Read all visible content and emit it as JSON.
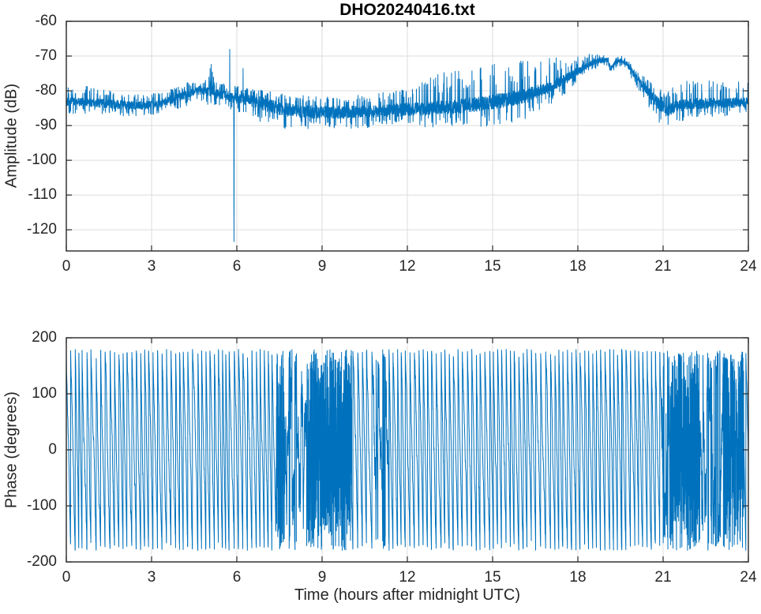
{
  "figure_title": "DHO20240416.txt",
  "line_color": "#0072BD",
  "grid_color": "#dcdcdc",
  "axis_color": "#262626",
  "background_color": "#ffffff",
  "chart_data": [
    {
      "type": "line",
      "title": "DHO20240416.txt",
      "ylabel": "Amplitude (dB)",
      "xlabel": "",
      "x_range": [
        0,
        24
      ],
      "ylim": [
        -126.1,
        -60
      ],
      "xticks": [
        0,
        3,
        6,
        9,
        12,
        15,
        18,
        21,
        24
      ],
      "xtick_labels": [
        "0",
        "3",
        "6",
        "9",
        "12",
        "15",
        "18",
        "21",
        "24"
      ],
      "yticks": [
        -60,
        -70,
        -80,
        -90,
        -100,
        -110,
        -120
      ],
      "ytick_labels": [
        "-60",
        "-70",
        "-80",
        "-90",
        "-100",
        "-110",
        "-120"
      ],
      "grid": true,
      "legend": "none",
      "line_color": "#0072BD",
      "description": "VLF amplitude of DHO transmitter vs time; noisy band near -84 dB, daytime bump near 04:48, large dropout spike to about -123.5 dB at 05:54, broad evening maximum near -71 dB at 18:30-19:30, sharp drop to about -86 dB by 21:00, recovery to -83.5 dB",
      "sample_step_hours": 0.005,
      "seed": 7,
      "trend_keypoints": [
        [
          0,
          -83.3
        ],
        [
          0.7,
          -83.2
        ],
        [
          1.5,
          -83.8
        ],
        [
          2.5,
          -84.3
        ],
        [
          3.2,
          -83.8
        ],
        [
          3.8,
          -82.3
        ],
        [
          4.3,
          -80.8
        ],
        [
          4.7,
          -79.8
        ],
        [
          5.0,
          -80.3
        ],
        [
          5.3,
          -80.8
        ],
        [
          5.6,
          -81.3
        ],
        [
          5.9,
          -82.0
        ],
        [
          6.3,
          -82.5
        ],
        [
          6.7,
          -83.2
        ],
        [
          7.2,
          -84.5
        ],
        [
          7.8,
          -85.5
        ],
        [
          8.5,
          -86.0
        ],
        [
          9.5,
          -86.2
        ],
        [
          10.5,
          -86.0
        ],
        [
          11.5,
          -85.6
        ],
        [
          12.5,
          -85.2
        ],
        [
          13.5,
          -84.6
        ],
        [
          14.5,
          -83.8
        ],
        [
          15.5,
          -82.6
        ],
        [
          16.2,
          -81.4
        ],
        [
          17.0,
          -79.0
        ],
        [
          17.6,
          -76.5
        ],
        [
          18.1,
          -73.8
        ],
        [
          18.5,
          -72.0
        ],
        [
          18.8,
          -71.2
        ],
        [
          19.05,
          -71.0
        ],
        [
          19.15,
          -74.0
        ],
        [
          19.3,
          -72.0
        ],
        [
          19.5,
          -71.2
        ],
        [
          19.7,
          -72.0
        ],
        [
          20.0,
          -75.5
        ],
        [
          20.4,
          -79.5
        ],
        [
          20.8,
          -83.5
        ],
        [
          21.1,
          -85.8
        ],
        [
          21.4,
          -84.8
        ],
        [
          21.8,
          -83.8
        ],
        [
          22.5,
          -83.6
        ],
        [
          23.2,
          -83.5
        ],
        [
          24,
          -83.3
        ]
      ],
      "noise_halfwidth_keypoints": [
        [
          0,
          1.4
        ],
        [
          3,
          1.3
        ],
        [
          5,
          1.3
        ],
        [
          6,
          1.6
        ],
        [
          7,
          2.0
        ],
        [
          9,
          2.0
        ],
        [
          11,
          1.8
        ],
        [
          12,
          2.0
        ],
        [
          14,
          2.2
        ],
        [
          16,
          2.2
        ],
        [
          17.5,
          1.6
        ],
        [
          18.5,
          1.0
        ],
        [
          19.6,
          0.7
        ],
        [
          20.3,
          1.3
        ],
        [
          21,
          2.0
        ],
        [
          22,
          1.6
        ],
        [
          24,
          1.5
        ]
      ],
      "up_spike_env_keypoints": [
        [
          0,
          3
        ],
        [
          1,
          3.5
        ],
        [
          2,
          2
        ],
        [
          4,
          2
        ],
        [
          6,
          2
        ],
        [
          8,
          2.5
        ],
        [
          10,
          3
        ],
        [
          12,
          4
        ],
        [
          13,
          8
        ],
        [
          14,
          8
        ],
        [
          15,
          9
        ],
        [
          16,
          9
        ],
        [
          17,
          7
        ],
        [
          18,
          3
        ],
        [
          19,
          0.5
        ],
        [
          20,
          1
        ],
        [
          20.8,
          3
        ],
        [
          21.5,
          5
        ],
        [
          22.5,
          5
        ],
        [
          24,
          5
        ]
      ],
      "down_spike_env_keypoints": [
        [
          0,
          2
        ],
        [
          4,
          2
        ],
        [
          6,
          3
        ],
        [
          7,
          4
        ],
        [
          8,
          3.5
        ],
        [
          10,
          3
        ],
        [
          12,
          3
        ],
        [
          14,
          4
        ],
        [
          15,
          5
        ],
        [
          16,
          5
        ],
        [
          17,
          4
        ],
        [
          18,
          1.5
        ],
        [
          19.5,
          1
        ],
        [
          20.2,
          2
        ],
        [
          20.8,
          4
        ],
        [
          21.5,
          3
        ],
        [
          22.5,
          2.5
        ],
        [
          24,
          2
        ]
      ],
      "spike_events": [
        [
          5.02,
          -76.0
        ],
        [
          5.06,
          -73.5
        ],
        [
          5.1,
          -72.3
        ],
        [
          5.14,
          -74.5
        ],
        [
          5.18,
          -76.0
        ],
        [
          5.75,
          -68.0
        ],
        [
          5.895,
          -95.0
        ],
        [
          5.9,
          -123.5
        ],
        [
          5.905,
          -105.0
        ],
        [
          6.22,
          -73.5
        ]
      ]
    },
    {
      "type": "line",
      "title": "",
      "ylabel": "Phase (degrees)",
      "xlabel": "Time (hours after midnight UTC)",
      "x_range": [
        0,
        24
      ],
      "ylim": [
        -200,
        200
      ],
      "xticks": [
        0,
        3,
        6,
        9,
        12,
        15,
        18,
        21,
        24
      ],
      "xtick_labels": [
        "0",
        "3",
        "6",
        "9",
        "12",
        "15",
        "18",
        "21",
        "24"
      ],
      "yticks": [
        200,
        100,
        0,
        -100,
        -200
      ],
      "ytick_labels": [
        "200",
        "100",
        "0",
        "-100",
        "-200"
      ],
      "grid": true,
      "legend": "none",
      "line_color": "#0072BD",
      "description": "Wrapped VLF phase (+/-180 deg) vs time; steady descending sawtooth of about 6.6 wraps per hour, chaotic/noisy intervals near 7.4-10.0 h and 21.0-23.9 h with slow wandering stretches near 7.7-8.45 h and 22.3-23.15 h",
      "sample_step_hours": 0.003,
      "seed": 1234,
      "wrap_degrees": 180,
      "cycles_per_hour": 6.6,
      "noise_sigma_default_deg": 5,
      "regions": [
        {
          "t0": 7.38,
          "t1": 7.68,
          "noise": 110,
          "rate_mult": 0.35
        },
        {
          "t0": 7.68,
          "t1": 8.45,
          "noise": 30,
          "rate_mult": 0.22
        },
        {
          "t0": 8.45,
          "t1": 10.05,
          "noise": 110,
          "rate_mult": 0.5
        },
        {
          "t0": 10.8,
          "t1": 11.35,
          "noise": 20,
          "rate_mult": 0.9
        },
        {
          "t0": 20.95,
          "t1": 21.25,
          "noise": 45,
          "rate_mult": 0.25
        },
        {
          "t0": 21.25,
          "t1": 22.3,
          "noise": 110,
          "rate_mult": 0.45
        },
        {
          "t0": 22.3,
          "t1": 23.15,
          "noise": 32,
          "rate_mult": 0.2
        },
        {
          "t0": 23.15,
          "t1": 23.85,
          "noise": 100,
          "rate_mult": 0.55
        }
      ]
    }
  ]
}
